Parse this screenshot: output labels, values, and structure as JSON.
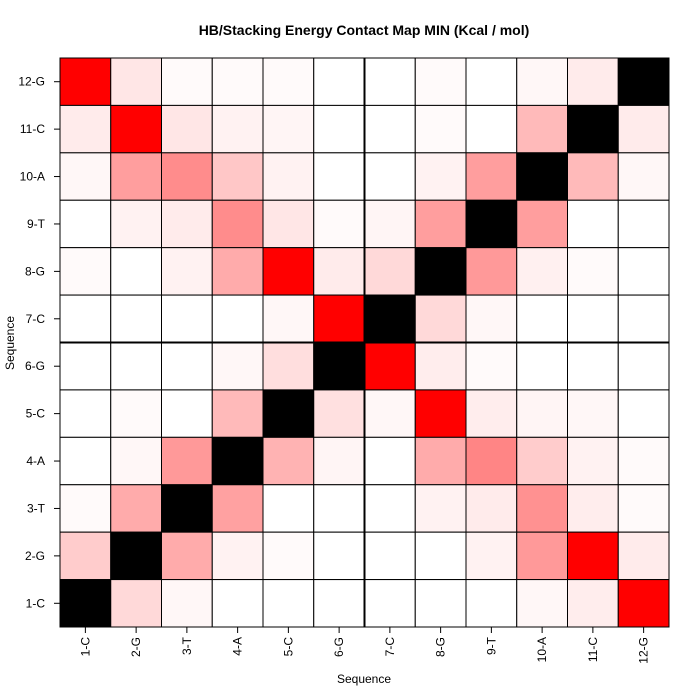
{
  "chart_data": {
    "type": "heatmap",
    "title": "HB/Stacking Energy Contact Map MIN (Kcal / mol)",
    "xlabel": "Sequence",
    "ylabel": "Sequence",
    "x_categories": [
      "1-C",
      "2-G",
      "3-T",
      "4-A",
      "5-C",
      "6-G",
      "7-C",
      "8-G",
      "9-T",
      "10-A",
      "11-C",
      "12-G"
    ],
    "y_categories": [
      "1-C",
      "2-G",
      "3-T",
      "4-A",
      "5-C",
      "6-G",
      "7-C",
      "8-G",
      "9-T",
      "10-A",
      "11-C",
      "12-G"
    ],
    "y_order": "bottom-to-top",
    "scale": "white-to-red intensity 0-1; diagonal self-contacts black",
    "diagonal_color": "#000000",
    "low_color": "#ffffff",
    "high_color": "#ff0000",
    "separators_after_index": [
      6
    ],
    "grid": true,
    "rows": [
      {
        "y": "12-G",
        "values": [
          1.0,
          0.1,
          0.02,
          0.02,
          0.02,
          0.0,
          0.0,
          0.02,
          0.0,
          0.03,
          0.08,
          "diag"
        ]
      },
      {
        "y": "11-C",
        "values": [
          0.08,
          1.0,
          0.1,
          0.05,
          0.04,
          0.0,
          0.0,
          0.02,
          0.0,
          0.27,
          "diag",
          0.08
        ]
      },
      {
        "y": "10-A",
        "values": [
          0.03,
          0.38,
          0.45,
          0.22,
          0.05,
          0.0,
          0.0,
          0.05,
          0.38,
          "diag",
          0.27,
          0.03
        ]
      },
      {
        "y": "9-T",
        "values": [
          0.0,
          0.05,
          0.08,
          0.45,
          0.1,
          0.02,
          0.04,
          0.38,
          "diag",
          0.38,
          0.0,
          0.0
        ]
      },
      {
        "y": "8-G",
        "values": [
          0.02,
          0.0,
          0.05,
          0.33,
          1.0,
          0.08,
          0.15,
          "diag",
          0.4,
          0.06,
          0.02,
          0.0
        ]
      },
      {
        "y": "7-C",
        "values": [
          0.0,
          0.0,
          0.0,
          0.0,
          0.03,
          1.0,
          "diag",
          0.15,
          0.03,
          0.0,
          0.0,
          0.0
        ]
      },
      {
        "y": "6-G",
        "values": [
          0.0,
          0.0,
          0.0,
          0.03,
          0.13,
          "diag",
          1.0,
          0.07,
          0.02,
          0.0,
          0.0,
          0.0
        ]
      },
      {
        "y": "5-C",
        "values": [
          0.0,
          0.02,
          0.0,
          0.27,
          "diag",
          0.12,
          0.03,
          1.0,
          0.07,
          0.04,
          0.03,
          0.0
        ]
      },
      {
        "y": "4-A",
        "values": [
          0.0,
          0.03,
          0.4,
          "diag",
          0.3,
          0.04,
          0.0,
          0.33,
          0.48,
          0.2,
          0.05,
          0.02
        ]
      },
      {
        "y": "3-T",
        "values": [
          0.02,
          0.33,
          "diag",
          0.37,
          0.0,
          0.0,
          0.0,
          0.05,
          0.08,
          0.43,
          0.07,
          0.02
        ]
      },
      {
        "y": "2-G",
        "values": [
          0.2,
          "diag",
          0.33,
          0.05,
          0.02,
          0.0,
          0.0,
          0.0,
          0.05,
          0.4,
          1.0,
          0.08
        ]
      },
      {
        "y": "1-C",
        "values": [
          "diag",
          0.15,
          0.03,
          0.0,
          0.0,
          0.0,
          0.0,
          0.0,
          0.0,
          0.03,
          0.07,
          1.0
        ]
      }
    ]
  }
}
